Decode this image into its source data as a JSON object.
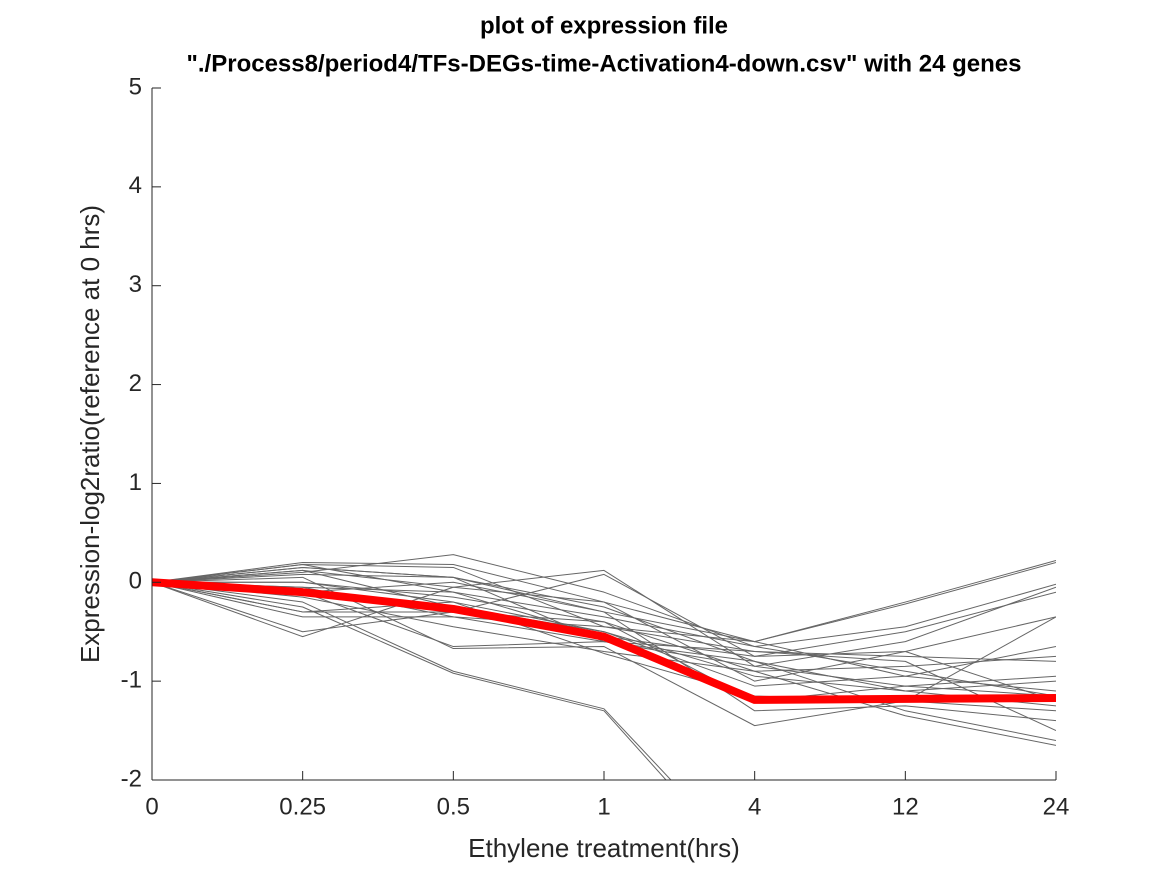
{
  "chart_data": {
    "type": "line",
    "title": [
      "plot of expression file",
      "\"./Process8/period4/TFs-DEGs-time-Activation4-down.csv\" with 24 genes"
    ],
    "x_label": "Ethylene treatment(hrs)",
    "y_label": "Expression-log2ratio(reference at 0 hrs)",
    "categories": [
      "0",
      "0.25",
      "0.5",
      "1",
      "4",
      "12",
      "24"
    ],
    "ylim": [
      -2,
      5
    ],
    "yticks": [
      -2,
      -1,
      0,
      1,
      2,
      3,
      4,
      5
    ],
    "series": [
      {
        "color": "#666666",
        "values": [
          0,
          0.2,
          0.18,
          -0.2,
          -0.6,
          -0.2,
          0.22
        ]
      },
      {
        "color": "#666666",
        "values": [
          0,
          0.15,
          0.05,
          -0.3,
          -0.6,
          -0.22,
          0.2
        ]
      },
      {
        "color": "#666666",
        "values": [
          0,
          0.1,
          0.28,
          -0.1,
          -0.65,
          -0.45,
          -0.02
        ]
      },
      {
        "color": "#666666",
        "values": [
          0,
          -0.2,
          -0.9,
          -1.28,
          -2.9,
          null,
          null
        ]
      },
      {
        "color": "#666666",
        "values": [
          0,
          -0.25,
          -0.92,
          -1.3,
          -3.0,
          null,
          null
        ]
      },
      {
        "color": "#666666",
        "values": [
          0,
          -0.55,
          -0.05,
          0.12,
          -0.85,
          -0.6,
          -0.05
        ]
      },
      {
        "color": "#666666",
        "values": [
          0,
          -0.5,
          -0.3,
          0.08,
          -0.75,
          -0.7,
          -0.35
        ]
      },
      {
        "color": "#666666",
        "values": [
          0,
          0.05,
          -0.67,
          -0.65,
          -1.45,
          -1.2,
          -0.35
        ]
      },
      {
        "color": "#666666",
        "values": [
          0,
          -0.3,
          -0.3,
          -0.4,
          -0.9,
          -1.35,
          -1.65
        ]
      },
      {
        "color": "#666666",
        "values": [
          0,
          -0.35,
          -0.35,
          -0.6,
          -0.8,
          -1.3,
          -1.6
        ]
      },
      {
        "color": "#666666",
        "values": [
          0,
          0.18,
          0.15,
          -0.45,
          -0.7,
          -0.8,
          -1.5
        ]
      },
      {
        "color": "#666666",
        "values": [
          0,
          -0.1,
          0.0,
          -0.3,
          -1.3,
          -1.25,
          -1.4
        ]
      },
      {
        "color": "#666666",
        "values": [
          0,
          0.12,
          -0.05,
          -0.2,
          -1.0,
          -0.7,
          -1.2
        ]
      },
      {
        "color": "#666666",
        "values": [
          0,
          -0.15,
          -0.45,
          -0.7,
          -0.9,
          -0.85,
          -0.75
        ]
      },
      {
        "color": "#666666",
        "values": [
          0,
          0.0,
          -0.2,
          -0.5,
          -1.05,
          -0.95,
          -0.65
        ]
      },
      {
        "color": "#666666",
        "values": [
          0,
          -0.05,
          -0.1,
          -0.55,
          -0.75,
          -0.5,
          -0.1
        ]
      },
      {
        "color": "#666666",
        "values": [
          0,
          0.18,
          -0.1,
          -0.35,
          -0.65,
          -0.9,
          -1.15
        ]
      },
      {
        "color": "#666666",
        "values": [
          0,
          0.08,
          0.05,
          -0.25,
          -0.8,
          -1.1,
          -1.0
        ]
      },
      {
        "color": "#666666",
        "values": [
          0,
          -0.3,
          -0.2,
          -0.72,
          -1.15,
          -1.2,
          -1.3
        ]
      },
      {
        "color": "#666666",
        "values": [
          0,
          0.15,
          0.05,
          -0.6,
          -0.85,
          -1.05,
          -0.95
        ]
      },
      {
        "color": "#666666",
        "values": [
          0,
          -0.1,
          -0.65,
          -0.6,
          -0.7,
          -0.75,
          -0.8
        ]
      },
      {
        "color": "#666666",
        "values": [
          0,
          0.0,
          -0.15,
          -0.4,
          -1.2,
          -1.05,
          -1.15
        ]
      },
      {
        "color": "#666666",
        "values": [
          0,
          0.12,
          -0.25,
          -0.5,
          -0.95,
          -1.1,
          -1.25
        ]
      },
      {
        "color": "#666666",
        "values": [
          0,
          -0.05,
          -0.35,
          -0.45,
          -0.6,
          -0.95,
          -1.1
        ]
      },
      {
        "color": "#ff0000",
        "values": [
          0,
          -0.1,
          -0.27,
          -0.55,
          -1.19,
          -1.18,
          -1.17
        ]
      }
    ]
  }
}
